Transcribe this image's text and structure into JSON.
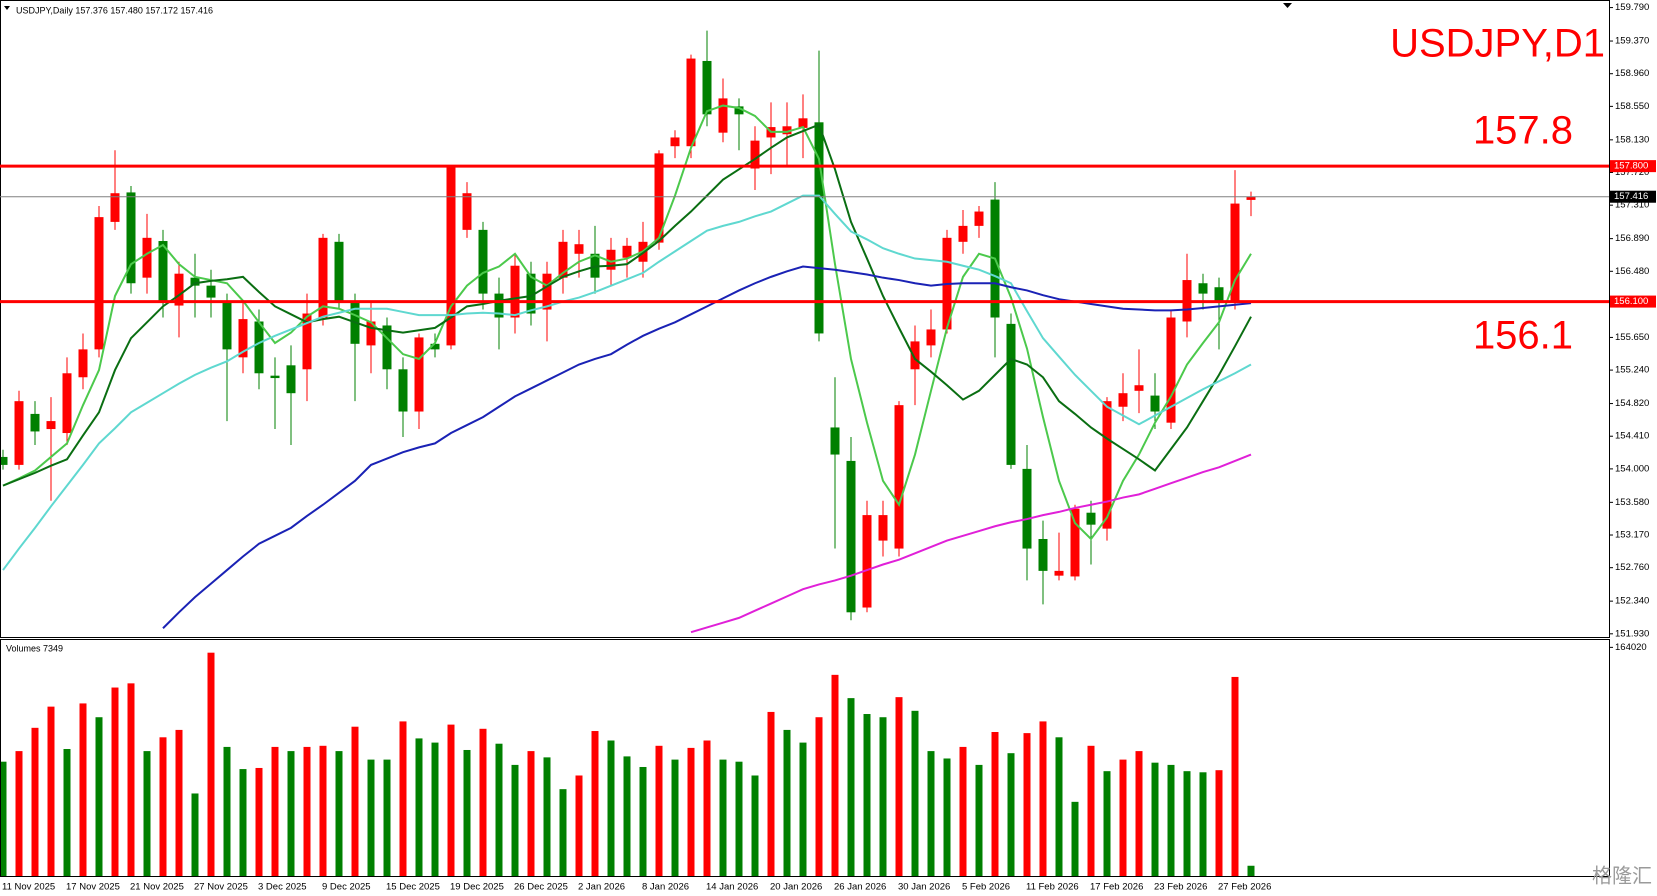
{
  "chart_data": [
    {
      "type": "candlestick",
      "title": "USDJPY,Daily 157.376 157.480 157.172 157.416",
      "annotations": [
        {
          "text": "USDJPY,D1"
        },
        {
          "text": "157.8"
        },
        {
          "text": "156.1"
        }
      ],
      "annotation_color": "#ff0000",
      "categories": [
        "11 Nov 2025",
        null,
        null,
        null,
        "17 Nov 2025",
        null,
        null,
        null,
        "21 Nov 2025",
        null,
        null,
        null,
        "27 Nov 2025",
        null,
        null,
        null,
        "3 Dec 2025",
        null,
        null,
        null,
        "9 Dec 2025",
        null,
        null,
        null,
        "15 Dec 2025",
        null,
        null,
        null,
        "19 Dec 2025",
        null,
        null,
        null,
        "26 Dec 2025",
        null,
        null,
        null,
        "2 Jan 2026",
        null,
        null,
        null,
        "8 Jan 2026",
        null,
        null,
        null,
        "14 Jan 2026",
        null,
        null,
        null,
        "20 Jan 2026",
        null,
        null,
        null,
        "26 Jan 2026",
        null,
        null,
        null,
        "30 Jan 2026",
        null,
        null,
        null,
        "5 Feb 2026",
        null,
        null,
        null,
        "11 Feb 2026",
        null,
        null,
        null,
        "17 Feb 2026",
        null,
        null,
        null,
        "23 Feb 2026",
        null,
        null,
        null,
        "27 Feb 2026",
        null,
        null
      ],
      "open": [
        154.15,
        154.05,
        154.69,
        154.5,
        154.45,
        155.15,
        155.5,
        157.1,
        157.47,
        156.4,
        156.86,
        156.05,
        156.4,
        156.3,
        156.1,
        155.4,
        155.85,
        155.17,
        155.3,
        155.25,
        155.9,
        156.85,
        156.1,
        155.55,
        155.8,
        155.25,
        154.72,
        155.57,
        155.55,
        157.0,
        157.0,
        156.2,
        155.9,
        156.45,
        156.0,
        156.4,
        156.7,
        156.7,
        156.5,
        156.65,
        156.6,
        156.84,
        158.05,
        158.05,
        159.12,
        158.22,
        158.55,
        157.77,
        158.16,
        158.2,
        158.28,
        158.35,
        154.52,
        154.1,
        152.26,
        153.1,
        153.0,
        155.25,
        155.55,
        155.75,
        156.85,
        157.05,
        157.38,
        155.82,
        154.0,
        153.12,
        152.66,
        152.65,
        153.45,
        153.25,
        154.78,
        154.98,
        154.92,
        154.58,
        155.85,
        156.33,
        156.28,
        156.11,
        157.376
      ],
      "high": [
        154.24,
        154.98,
        154.85,
        154.9,
        155.4,
        155.7,
        157.3,
        158.0,
        157.55,
        157.2,
        157.0,
        156.6,
        156.7,
        156.5,
        156.2,
        156.1,
        156.0,
        155.4,
        155.55,
        156.2,
        156.95,
        156.95,
        156.2,
        156.1,
        155.9,
        155.4,
        155.7,
        155.7,
        157.8,
        157.6,
        157.1,
        156.4,
        156.7,
        156.6,
        156.6,
        157.0,
        157.0,
        157.05,
        156.9,
        156.9,
        157.1,
        158.0,
        158.25,
        159.2,
        159.5,
        158.9,
        158.65,
        158.3,
        158.6,
        158.6,
        158.7,
        159.25,
        155.15,
        154.4,
        153.6,
        153.6,
        154.85,
        155.8,
        156.0,
        157.0,
        157.25,
        157.3,
        157.6,
        155.95,
        154.3,
        153.35,
        153.2,
        153.55,
        153.6,
        154.9,
        155.2,
        155.5,
        155.2,
        156.0,
        156.7,
        156.45,
        156.4,
        157.75,
        157.48
      ],
      "low": [
        153.99,
        153.99,
        154.3,
        153.6,
        154.3,
        155.0,
        155.4,
        157.0,
        156.2,
        156.2,
        155.9,
        155.65,
        155.9,
        155.9,
        154.6,
        155.2,
        155.0,
        154.5,
        154.3,
        154.85,
        155.8,
        156.0,
        154.85,
        155.2,
        155.0,
        154.4,
        154.5,
        155.4,
        155.5,
        156.9,
        156.0,
        155.5,
        155.7,
        155.8,
        155.6,
        156.2,
        156.4,
        156.2,
        156.3,
        156.4,
        156.4,
        156.75,
        157.9,
        157.9,
        158.3,
        158.1,
        158.0,
        157.5,
        157.7,
        157.8,
        157.9,
        155.6,
        153.0,
        152.1,
        152.2,
        152.9,
        152.9,
        154.8,
        155.4,
        155.7,
        156.7,
        156.9,
        155.4,
        154.0,
        152.6,
        152.3,
        152.6,
        152.6,
        152.8,
        153.1,
        154.6,
        154.7,
        154.5,
        154.5,
        155.65,
        156.0,
        155.5,
        156.0,
        157.172
      ],
      "close": [
        154.05,
        154.85,
        154.47,
        154.6,
        155.2,
        155.5,
        157.16,
        157.46,
        156.33,
        156.9,
        156.1,
        156.45,
        156.3,
        156.15,
        155.5,
        155.88,
        155.2,
        155.14,
        154.95,
        155.95,
        156.9,
        156.1,
        155.57,
        155.85,
        155.25,
        154.72,
        155.65,
        155.5,
        157.8,
        157.46,
        156.2,
        155.9,
        156.55,
        155.95,
        156.45,
        156.85,
        156.82,
        156.4,
        156.75,
        156.8,
        156.85,
        157.96,
        158.16,
        159.15,
        158.45,
        158.65,
        158.45,
        158.12,
        158.29,
        158.3,
        158.4,
        155.7,
        154.18,
        152.2,
        153.42,
        153.42,
        154.8,
        155.6,
        155.75,
        156.9,
        157.05,
        157.23,
        155.9,
        154.05,
        153.0,
        152.72,
        152.72,
        153.5,
        153.3,
        154.85,
        154.95,
        155.05,
        154.72,
        155.9,
        156.37,
        156.2,
        156.1,
        157.33,
        157.416
      ],
      "up_color": "#ff0000",
      "down_color": "#008000",
      "series": [
        {
          "color": "#4cc94c",
          "values": [
            153.79,
            153.88,
            153.98,
            154.15,
            154.32,
            154.8,
            155.24,
            156.17,
            156.57,
            156.7,
            156.81,
            156.57,
            156.41,
            156.37,
            156.33,
            156.11,
            155.84,
            155.58,
            155.71,
            155.91,
            156.04,
            156.01,
            155.93,
            155.84,
            155.64,
            155.44,
            155.38,
            155.58,
            156.04,
            156.3,
            156.46,
            156.54,
            156.7,
            156.41,
            156.3,
            156.46,
            156.6,
            156.68,
            156.6,
            156.64,
            156.73,
            156.9,
            157.43,
            158.03,
            158.49,
            158.56,
            158.53,
            158.43,
            158.23,
            158.23,
            158.29,
            157.89,
            156.57,
            155.38,
            154.58,
            153.85,
            153.55,
            154.18,
            154.98,
            155.77,
            156.41,
            156.7,
            156.64,
            156.15,
            155.51,
            154.65,
            153.85,
            153.32,
            153.12,
            153.39,
            153.85,
            154.18,
            154.58,
            154.91,
            155.31,
            155.58,
            155.84,
            156.37,
            156.7
          ]
        },
        {
          "color": "#0a6e12",
          "values": [
            153.79,
            153.87,
            153.95,
            154.04,
            154.12,
            154.42,
            154.71,
            155.24,
            155.64,
            155.84,
            156.04,
            156.18,
            156.33,
            156.36,
            156.38,
            156.41,
            156.22,
            156.04,
            155.94,
            155.84,
            155.88,
            155.91,
            155.84,
            155.77,
            155.74,
            155.71,
            155.74,
            155.77,
            155.9,
            156.04,
            156.07,
            156.11,
            156.14,
            156.17,
            156.29,
            156.41,
            156.48,
            156.54,
            156.55,
            156.57,
            156.71,
            156.86,
            157.05,
            157.23,
            157.43,
            157.63,
            157.76,
            157.89,
            158.03,
            158.16,
            158.24,
            158.32,
            157.76,
            157.1,
            156.64,
            156.17,
            155.77,
            155.38,
            155.22,
            155.05,
            154.87,
            154.98,
            155.18,
            155.38,
            155.31,
            155.15,
            154.85,
            154.69,
            154.52,
            154.38,
            154.25,
            154.12,
            153.98,
            154.25,
            154.52,
            154.85,
            155.18,
            155.54,
            155.91
          ]
        },
        {
          "color": "#5fd8d0",
          "values": [
            152.73,
            153.0,
            153.26,
            153.53,
            153.79,
            154.05,
            154.32,
            154.51,
            154.71,
            154.83,
            154.95,
            155.07,
            155.18,
            155.27,
            155.35,
            155.47,
            155.58,
            155.67,
            155.75,
            155.83,
            155.91,
            155.96,
            156.01,
            156.01,
            156.01,
            155.97,
            155.93,
            155.93,
            155.93,
            155.95,
            155.96,
            155.95,
            155.93,
            155.99,
            156.04,
            156.1,
            156.15,
            156.22,
            156.3,
            156.38,
            156.46,
            156.6,
            156.73,
            156.86,
            156.99,
            157.05,
            157.1,
            157.17,
            157.23,
            157.33,
            157.43,
            157.43,
            157.2,
            156.98,
            156.88,
            156.77,
            156.7,
            156.64,
            156.62,
            156.6,
            156.55,
            156.5,
            156.42,
            156.33,
            155.98,
            155.64,
            155.41,
            155.18,
            154.98,
            154.78,
            154.67,
            154.56,
            154.67,
            154.78,
            154.89,
            155.0,
            155.1,
            155.2,
            155.31
          ]
        },
        {
          "color": "#1a22b5",
          "values": [
            null,
            null,
            null,
            null,
            null,
            null,
            null,
            null,
            null,
            null,
            152.0,
            152.2,
            152.39,
            152.56,
            152.73,
            152.9,
            153.06,
            153.16,
            153.26,
            153.41,
            153.55,
            153.7,
            153.85,
            154.05,
            154.13,
            154.21,
            154.27,
            154.32,
            154.45,
            154.55,
            154.65,
            154.78,
            154.91,
            155.01,
            155.11,
            155.21,
            155.31,
            155.38,
            155.44,
            155.56,
            155.67,
            155.76,
            155.84,
            155.94,
            156.04,
            156.14,
            156.24,
            156.33,
            156.41,
            156.48,
            156.54,
            156.52,
            156.5,
            156.47,
            156.44,
            156.4,
            156.37,
            156.33,
            156.3,
            156.32,
            156.33,
            156.33,
            156.33,
            156.28,
            156.24,
            156.18,
            156.13,
            156.1,
            156.07,
            156.04,
            156.01,
            156.0,
            155.99,
            155.99,
            156.0,
            156.02,
            156.04,
            156.06,
            156.08
          ]
        },
        {
          "color": "#e020d8",
          "values": [
            null,
            null,
            null,
            null,
            null,
            null,
            null,
            null,
            null,
            null,
            null,
            null,
            null,
            null,
            null,
            null,
            null,
            null,
            null,
            null,
            null,
            null,
            null,
            null,
            null,
            null,
            null,
            null,
            null,
            null,
            null,
            null,
            null,
            null,
            null,
            null,
            null,
            null,
            null,
            null,
            null,
            null,
            null,
            151.95,
            152.01,
            152.07,
            152.13,
            152.22,
            152.31,
            152.4,
            152.49,
            152.55,
            152.6,
            152.66,
            152.73,
            152.8,
            152.86,
            152.94,
            153.02,
            153.1,
            153.16,
            153.22,
            153.28,
            153.33,
            153.37,
            153.42,
            153.46,
            153.51,
            153.55,
            153.59,
            153.64,
            153.68,
            153.75,
            153.82,
            153.89,
            153.96,
            154.02,
            154.1,
            154.18
          ]
        }
      ],
      "hlines": [
        {
          "value": 157.8,
          "label": "157.800",
          "color": "#ff0000"
        },
        {
          "value": 156.1,
          "label": "156.100",
          "color": "#ff0000"
        }
      ],
      "last_price_color": "#808080",
      "ylim": [
        151.89,
        159.86
      ],
      "yticks": [
        {
          "value": 159.79,
          "label": "159.790"
        },
        {
          "value": 159.37,
          "label": "159.370"
        },
        {
          "value": 158.96,
          "label": "158.960"
        },
        {
          "value": 158.55,
          "label": "158.550"
        },
        {
          "value": 158.13,
          "label": "158.130"
        },
        {
          "value": 157.72,
          "label": "157.720"
        },
        {
          "value": 157.31,
          "label": "157.310"
        },
        {
          "value": 156.89,
          "label": "156.890"
        },
        {
          "value": 156.48,
          "label": "156.480"
        },
        {
          "value": 155.65,
          "label": "155.650"
        },
        {
          "value": 155.24,
          "label": "155.240"
        },
        {
          "value": 154.82,
          "label": "154.820"
        },
        {
          "value": 154.41,
          "label": "154.410"
        },
        {
          "value": 154.0,
          "label": "154.000"
        },
        {
          "value": 153.58,
          "label": "153.580"
        },
        {
          "value": 153.17,
          "label": "153.170"
        },
        {
          "value": 152.76,
          "label": "152.760"
        },
        {
          "value": 152.34,
          "label": "152.340"
        },
        {
          "value": 151.93,
          "label": "151.930"
        }
      ],
      "grid": false
    },
    {
      "type": "bar",
      "title": "Volumes 7349",
      "values": [
        82000,
        89600,
        106300,
        121500,
        91100,
        123800,
        113900,
        135200,
        138200,
        89600,
        99500,
        104800,
        59200,
        160200,
        92600,
        76700,
        77500,
        92600,
        89600,
        92600,
        93400,
        89600,
        107100,
        83500,
        83500,
        110900,
        98700,
        95700,
        108600,
        90400,
        105600,
        94900,
        79700,
        89600,
        85100,
        62300,
        72100,
        104000,
        97200,
        85800,
        78200,
        93400,
        83500,
        91900,
        97200,
        83500,
        82000,
        72100,
        117700,
        104800,
        95700,
        113900,
        144300,
        127600,
        116200,
        113900,
        128300,
        118500,
        89600,
        84300,
        92600,
        79700,
        103300,
        88100,
        102500,
        110900,
        99500,
        53200,
        93400,
        75200,
        83500,
        89600,
        81300,
        79700,
        75200,
        74400,
        75900,
        142800,
        7349
      ],
      "up_color": "#ff0000",
      "down_color": "#008000",
      "ylim": [
        0,
        169300
      ],
      "yticks": [
        164020
      ],
      "grid": false
    }
  ],
  "watermark": "格隆汇"
}
